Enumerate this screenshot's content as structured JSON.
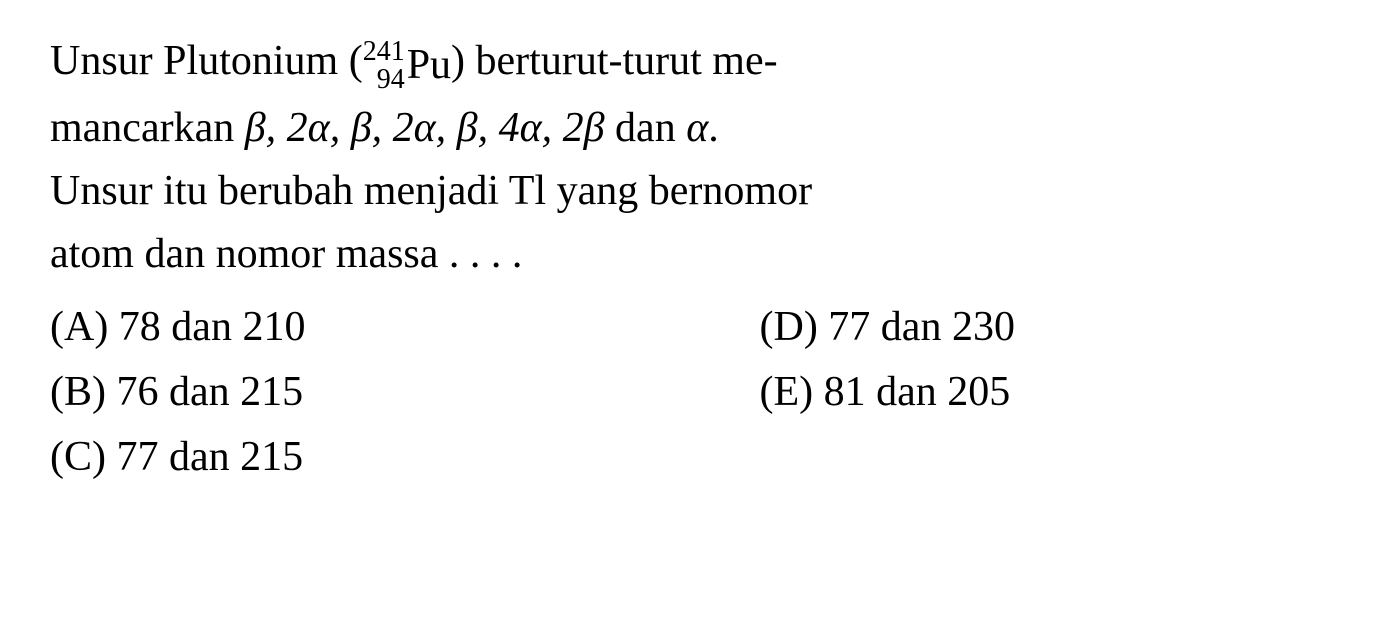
{
  "question": {
    "line1_pre": "Unsur Plutonium (",
    "isotope": {
      "mass": "241",
      "atomic": "94",
      "symbol": "Pu"
    },
    "line1_post": ") berturut-turut me-",
    "line2_pre": "mancarkan ",
    "decay_sequence": "β, 2α, β, 2α, β, 4α, 2β",
    "line2_mid": " dan ",
    "decay_last": "α",
    "line2_end": ".",
    "line3": "Unsur itu berubah menjadi Tl yang bernomor",
    "line4": "atom dan nomor massa . . . ."
  },
  "options": {
    "a": "(A)  78 dan 210",
    "b": "(B)  76 dan 215",
    "c": "(C)  77 dan 215",
    "d": "(D)  77 dan 230",
    "e": "(E)  81 dan 205"
  },
  "styling": {
    "font_family": "Times New Roman",
    "font_size_pt": 42,
    "text_color": "#000000",
    "background_color": "#ffffff",
    "isotope_number_fontsize": 28,
    "line_height": 1.5
  }
}
